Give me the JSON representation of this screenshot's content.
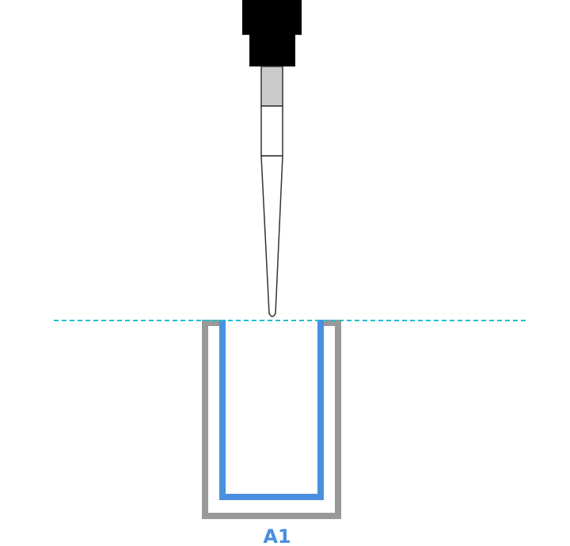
{
  "diagram": {
    "well_label": "A1",
    "colors": {
      "pipette_body": "#000000",
      "tip_collar": "#cccccc",
      "tip_outline": "#333333",
      "well_outer": "#999999",
      "well_liquid": "#4a8fe0",
      "reference_line": "#1fc0cf",
      "label": "#4a8fe0"
    }
  }
}
